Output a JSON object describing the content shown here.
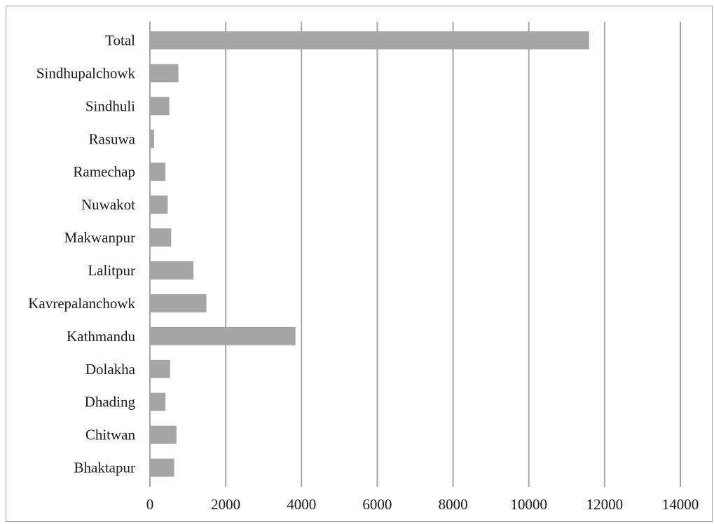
{
  "chart_data": {
    "type": "bar",
    "orientation": "horizontal",
    "categories": [
      "Bhaktapur",
      "Chitwan",
      "Dhading",
      "Dolakha",
      "Kathmandu",
      "Kavrepalanchowk",
      "Lalitpur",
      "Makwanpur",
      "Nuwakot",
      "Ramechap",
      "Rasuwa",
      "Sindhuli",
      "Sindhupalchowk",
      "Total"
    ],
    "values": [
      640,
      700,
      410,
      530,
      3840,
      1490,
      1150,
      560,
      470,
      410,
      110,
      510,
      750,
      11590
    ],
    "xlim": [
      0,
      14000
    ],
    "xticks": [
      "0",
      "2000",
      "4000",
      "6000",
      "8000",
      "10000",
      "12000",
      "14000"
    ],
    "xlabel": "",
    "ylabel": "",
    "title": "",
    "grid": "vertical",
    "legend": "none",
    "colors": {
      "bar": "#a5a5a5",
      "grid": "#a6a6a6",
      "border": "#9a9a9a",
      "text": "#1a1a1a"
    }
  }
}
